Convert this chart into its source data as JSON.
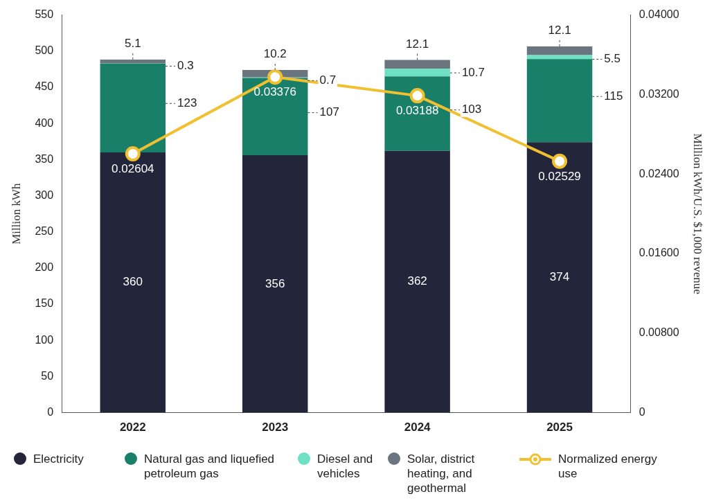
{
  "chart_data": {
    "type": "bar",
    "stacked": true,
    "categories": [
      "2022",
      "2023",
      "2024",
      "2025"
    ],
    "ylabel": "Million kWh",
    "y2label": "Million kWh/U.S. $1,000 revenue",
    "ylim": [
      0,
      550
    ],
    "yticks": [
      0,
      50,
      100,
      150,
      200,
      250,
      300,
      350,
      400,
      450,
      500,
      550
    ],
    "y2lim": [
      0,
      0.04
    ],
    "y2ticks": [
      0,
      {
        "value": 0.008,
        "label": "0.00800"
      },
      {
        "value": 0.016,
        "label": "0.01600"
      },
      {
        "value": 0.024,
        "label": "0.02400"
      },
      {
        "value": 0.032,
        "label": "0.03200"
      },
      {
        "value": 0.04,
        "label": "0.04000"
      }
    ],
    "grid": false,
    "legend": "bottom",
    "data_labels": true,
    "marker": "circle",
    "series": [
      {
        "name": "Electricity",
        "color": "#23263a",
        "values": [
          360,
          356,
          362,
          374
        ]
      },
      {
        "name": "Natural gas and liquefied petroleum gas",
        "color": "#1a7f68",
        "values": [
          123,
          107,
          103,
          115
        ]
      },
      {
        "name": "Diesel and vehicles",
        "color": "#6ee0c3",
        "values": [
          0.3,
          0.7,
          10.7,
          5.5
        ]
      },
      {
        "name": "Solar, district heating, and geothermal",
        "color": "#6b7580",
        "values": [
          5.1,
          10.2,
          12.1,
          12.1
        ]
      },
      {
        "name": "Normalized energy use",
        "type": "line",
        "axis": "y2",
        "color": "#f0c030",
        "values": [
          0.02604,
          0.03376,
          0.03188,
          0.02529
        ]
      }
    ]
  }
}
